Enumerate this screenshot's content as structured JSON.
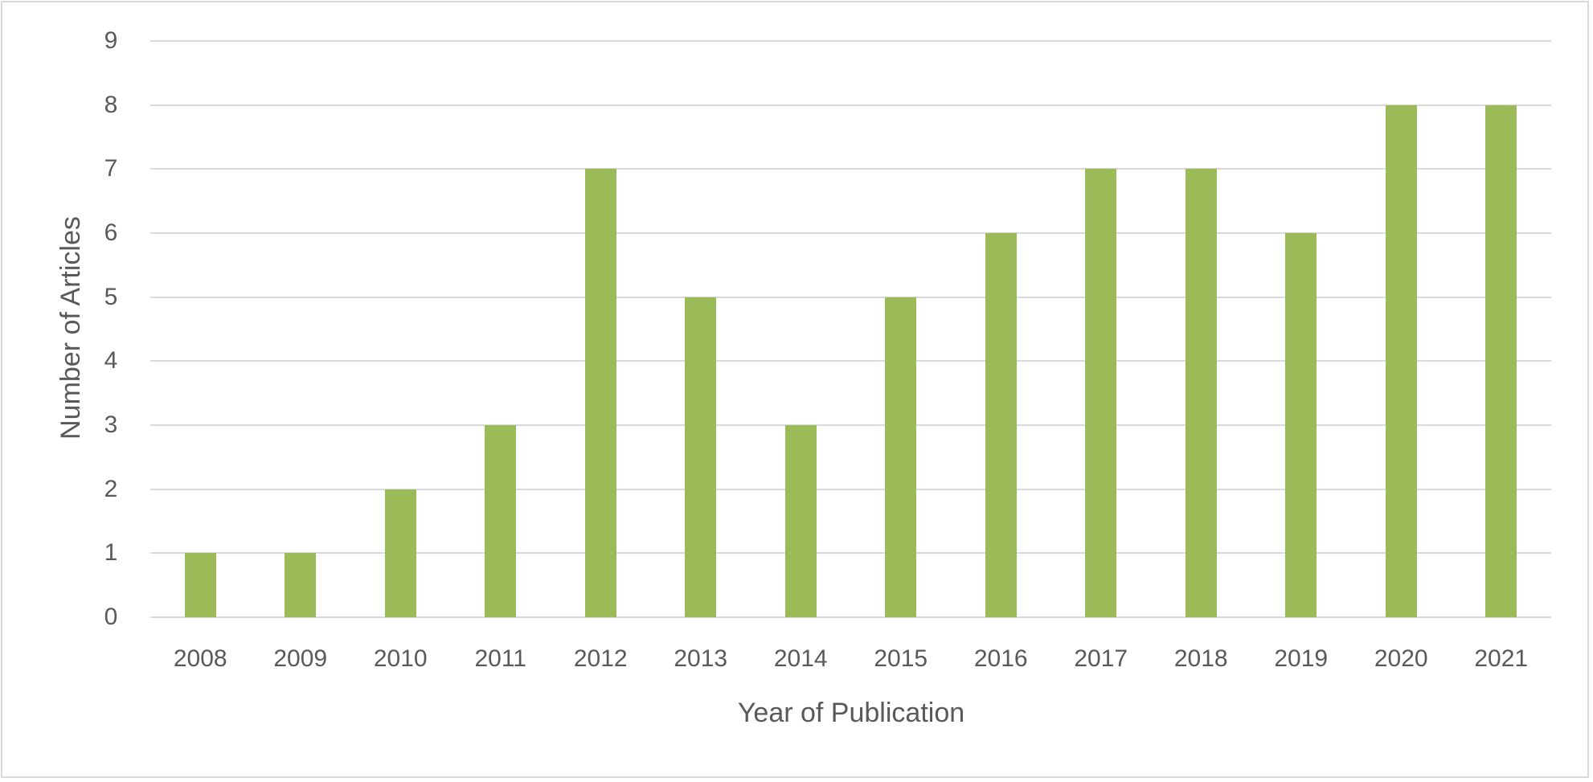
{
  "chart_data": {
    "type": "bar",
    "title": "",
    "xlabel": "Year of Publication",
    "ylabel": "Number of Articles",
    "categories": [
      "2008",
      "2009",
      "2010",
      "2011",
      "2012",
      "2013",
      "2014",
      "2015",
      "2016",
      "2017",
      "2018",
      "2019",
      "2020",
      "2021"
    ],
    "values": [
      1,
      1,
      2,
      3,
      7,
      5,
      3,
      5,
      6,
      7,
      7,
      6,
      8,
      8
    ],
    "ylim": [
      0,
      9
    ],
    "yticks": [
      "0",
      "1",
      "2",
      "3",
      "4",
      "5",
      "6",
      "7",
      "8",
      "9"
    ],
    "grid": true,
    "legend": null,
    "colors": {
      "bar": "#9BBB59",
      "grid": "#D9D9D9",
      "text": "#595959",
      "border": "#D9D9D9"
    }
  }
}
